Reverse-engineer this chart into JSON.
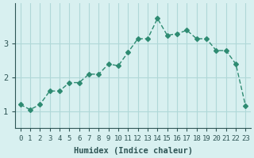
{
  "xlabel": "Humidex (Indice chaleur)",
  "ylabel": "",
  "x_values": [
    0,
    1,
    2,
    3,
    4,
    5,
    6,
    7,
    8,
    9,
    10,
    11,
    12,
    13,
    14,
    15,
    16,
    17,
    18,
    19,
    20,
    21,
    22,
    23
  ],
  "y_values": [
    1.2,
    1.05,
    1.2,
    1.6,
    1.6,
    1.85,
    1.85,
    2.1,
    2.1,
    2.4,
    2.35,
    2.75,
    3.15,
    3.15,
    3.75,
    3.25,
    3.3,
    3.4,
    3.15,
    3.15,
    2.8,
    2.8,
    2.4,
    1.15
  ],
  "line_color": "#2e8b72",
  "marker": "D",
  "marker_size": 3,
  "bg_color": "#d8f0f0",
  "grid_color": "#b0d8d8",
  "tick_color": "#2e8b72",
  "text_color": "#2e5555",
  "ylim": [
    0.5,
    4.2
  ],
  "yticks": [
    1,
    2,
    3
  ],
  "xlim": [
    -0.5,
    23.5
  ],
  "title_fontsize": 7,
  "label_fontsize": 7.5,
  "tick_fontsize": 6.5
}
